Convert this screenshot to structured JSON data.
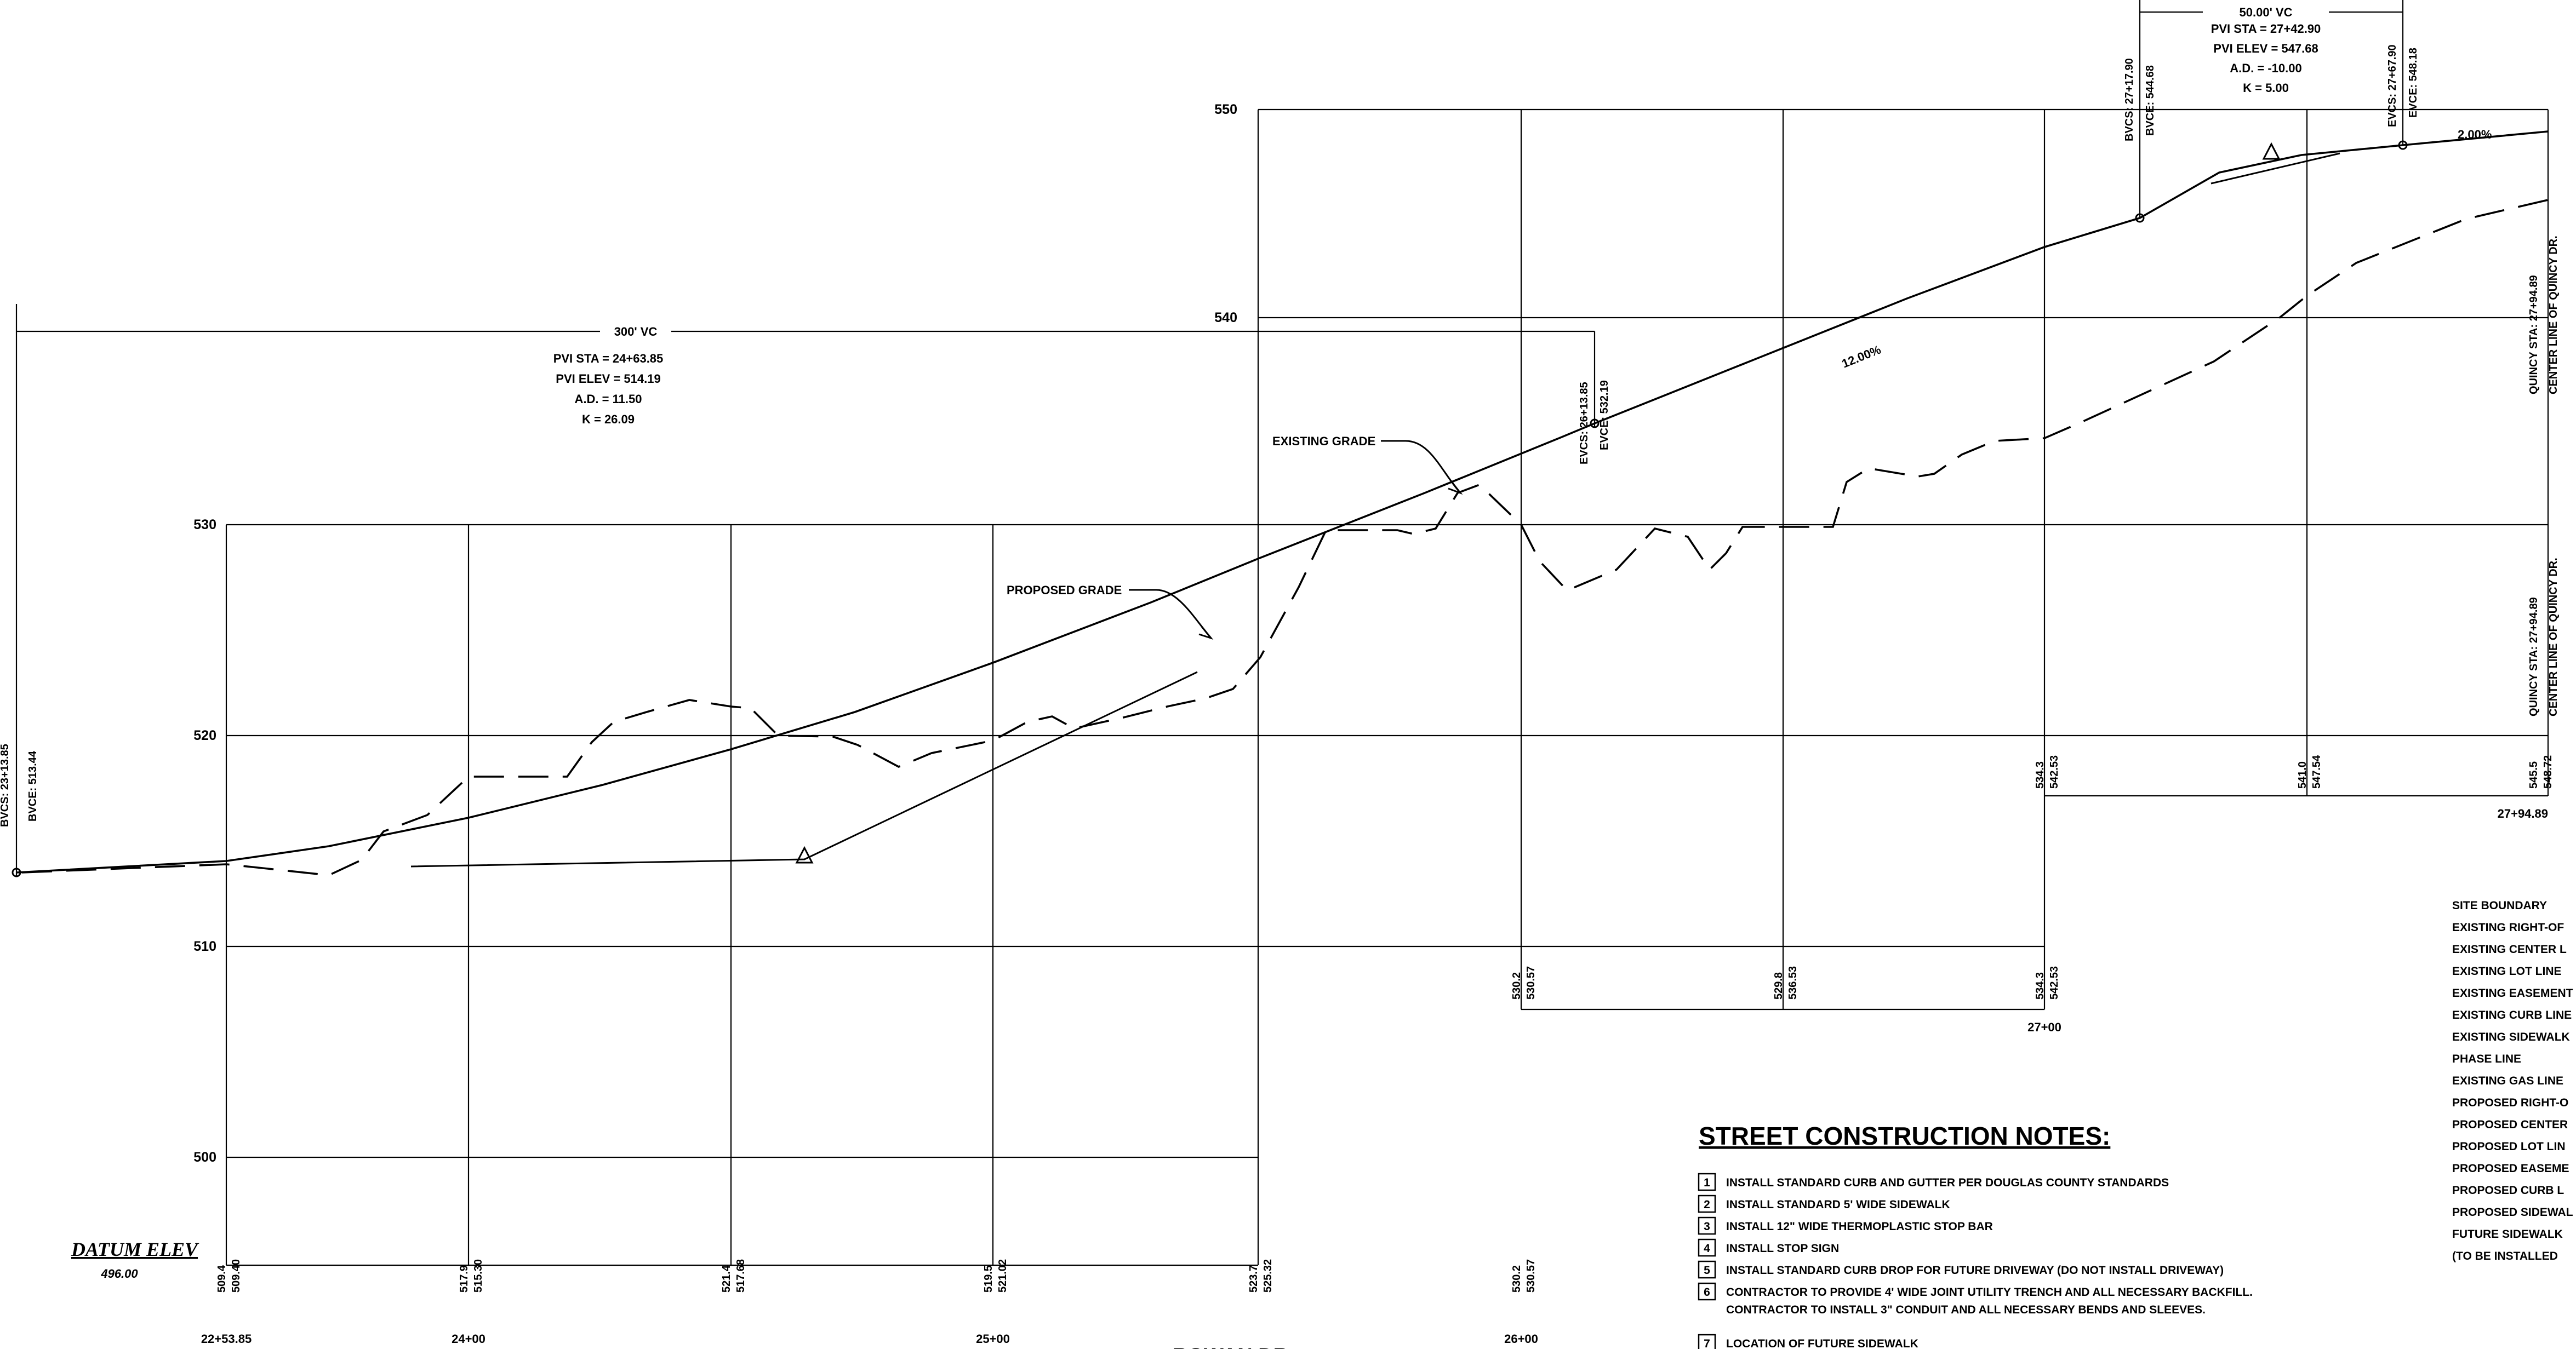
{
  "datum": {
    "label": "DATUM ELEV",
    "value": "496.00"
  },
  "elev_labels": [
    "550",
    "540",
    "530",
    "520",
    "510",
    "500"
  ],
  "stations": [
    {
      "label": "22+53.85"
    },
    {
      "label": "24+00"
    },
    {
      "label": "25+00"
    },
    {
      "label": "26+00"
    },
    {
      "label": "27+00"
    },
    {
      "label": "27+94.89"
    }
  ],
  "street_name": "ROWAN DR",
  "elev_pairs": [
    {
      "a": "509.4",
      "b": "509.40"
    },
    {
      "a": "517.9",
      "b": "515.30"
    },
    {
      "a": "521.4",
      "b": "517.68"
    },
    {
      "a": "519.5",
      "b": "521.02"
    },
    {
      "a": "523.7",
      "b": "525.32"
    },
    {
      "a": "530.2",
      "b": "530.57"
    },
    {
      "a": "530.2",
      "b": "530.57"
    },
    {
      "a": "529.8",
      "b": "536.53"
    },
    {
      "a": "534.3",
      "b": "542.53"
    },
    {
      "a": "534.3",
      "b": "542.53"
    },
    {
      "a": "541.0",
      "b": "547.54"
    },
    {
      "a": "545.5",
      "b": "548.72"
    }
  ],
  "curves": [
    {
      "vc": "300' VC",
      "lines": [
        "PVI STA = 24+63.85",
        "PVI ELEV = 514.19",
        "A.D. = 11.50",
        "K = 26.09"
      ],
      "start_sta": "BVCS: 23+13.85",
      "start_elev": "BVCE: 513.44",
      "end_sta": "EVCS: 26+13.85",
      "end_elev": "EVCE: 532.19"
    },
    {
      "vc": "50.00' VC",
      "lines": [
        "PVI STA = 27+42.90",
        "PVI ELEV = 547.68",
        "A.D. = -10.00",
        "K = 5.00"
      ],
      "start_sta": "BVCS: 27+17.90",
      "start_elev": "BVCE: 544.68",
      "end_sta": "EVCS: 27+67.90",
      "end_elev": "EVCE: 548.18"
    }
  ],
  "grades": {
    "g1": "12.00%",
    "g2": "2.00%"
  },
  "callouts": {
    "existing": "EXISTING GRADE",
    "proposed": "PROPOSED GRADE"
  },
  "quincy": [
    {
      "sta": "QUINCY STA: 27+94.89",
      "line": "CENTER LINE OF QUINCY DR."
    },
    {
      "sta": "QUINCY STA: 27+94.89",
      "line": "CENTER LINE OF QUINCY DR."
    }
  ],
  "legend": [
    "SITE BOUNDARY",
    "EXISTING RIGHT-OF",
    "EXISTING CENTER L",
    "EXISTING LOT LINE",
    "EXISTING EASEMENT",
    "EXISTING CURB LINE",
    "EXISTING SIDEWALK",
    "PHASE LINE",
    "EXISTING GAS LINE",
    "PROPOSED RIGHT-O",
    "PROPOSED CENTER",
    "PROPOSED LOT LIN",
    "PROPOSED EASEME",
    "PROPOSED CURB L",
    "PROPOSED SIDEWAL",
    "FUTURE SIDEWALK",
    "(TO BE INSTALLED"
  ],
  "notes": {
    "title": "STREET CONSTRUCTION NOTES:",
    "items": [
      {
        "num": "1",
        "lines": [
          "INSTALL STANDARD CURB AND GUTTER PER DOUGLAS COUNTY STANDARDS"
        ]
      },
      {
        "num": "2",
        "lines": [
          "INSTALL STANDARD 5' WIDE SIDEWALK"
        ]
      },
      {
        "num": "3",
        "lines": [
          "INSTALL 12\" WIDE THERMOPLASTIC STOP BAR"
        ]
      },
      {
        "num": "4",
        "lines": [
          "INSTALL STOP SIGN"
        ]
      },
      {
        "num": "5",
        "lines": [
          "INSTALL STANDARD CURB DROP FOR FUTURE DRIVEWAY (DO NOT INSTALL DRIVEWAY)"
        ]
      },
      {
        "num": "6",
        "lines": [
          "CONTRACTOR TO PROVIDE 4' WIDE JOINT UTILITY TRENCH AND ALL NECESSARY BACKFILL.",
          "CONTRACTOR TO INSTALL 3\" CONDUIT AND ALL NECESSARY BENDS AND SLEEVES."
        ]
      },
      {
        "num": "7",
        "lines": [
          "LOCATION OF FUTURE SIDEWALK"
        ]
      }
    ]
  }
}
